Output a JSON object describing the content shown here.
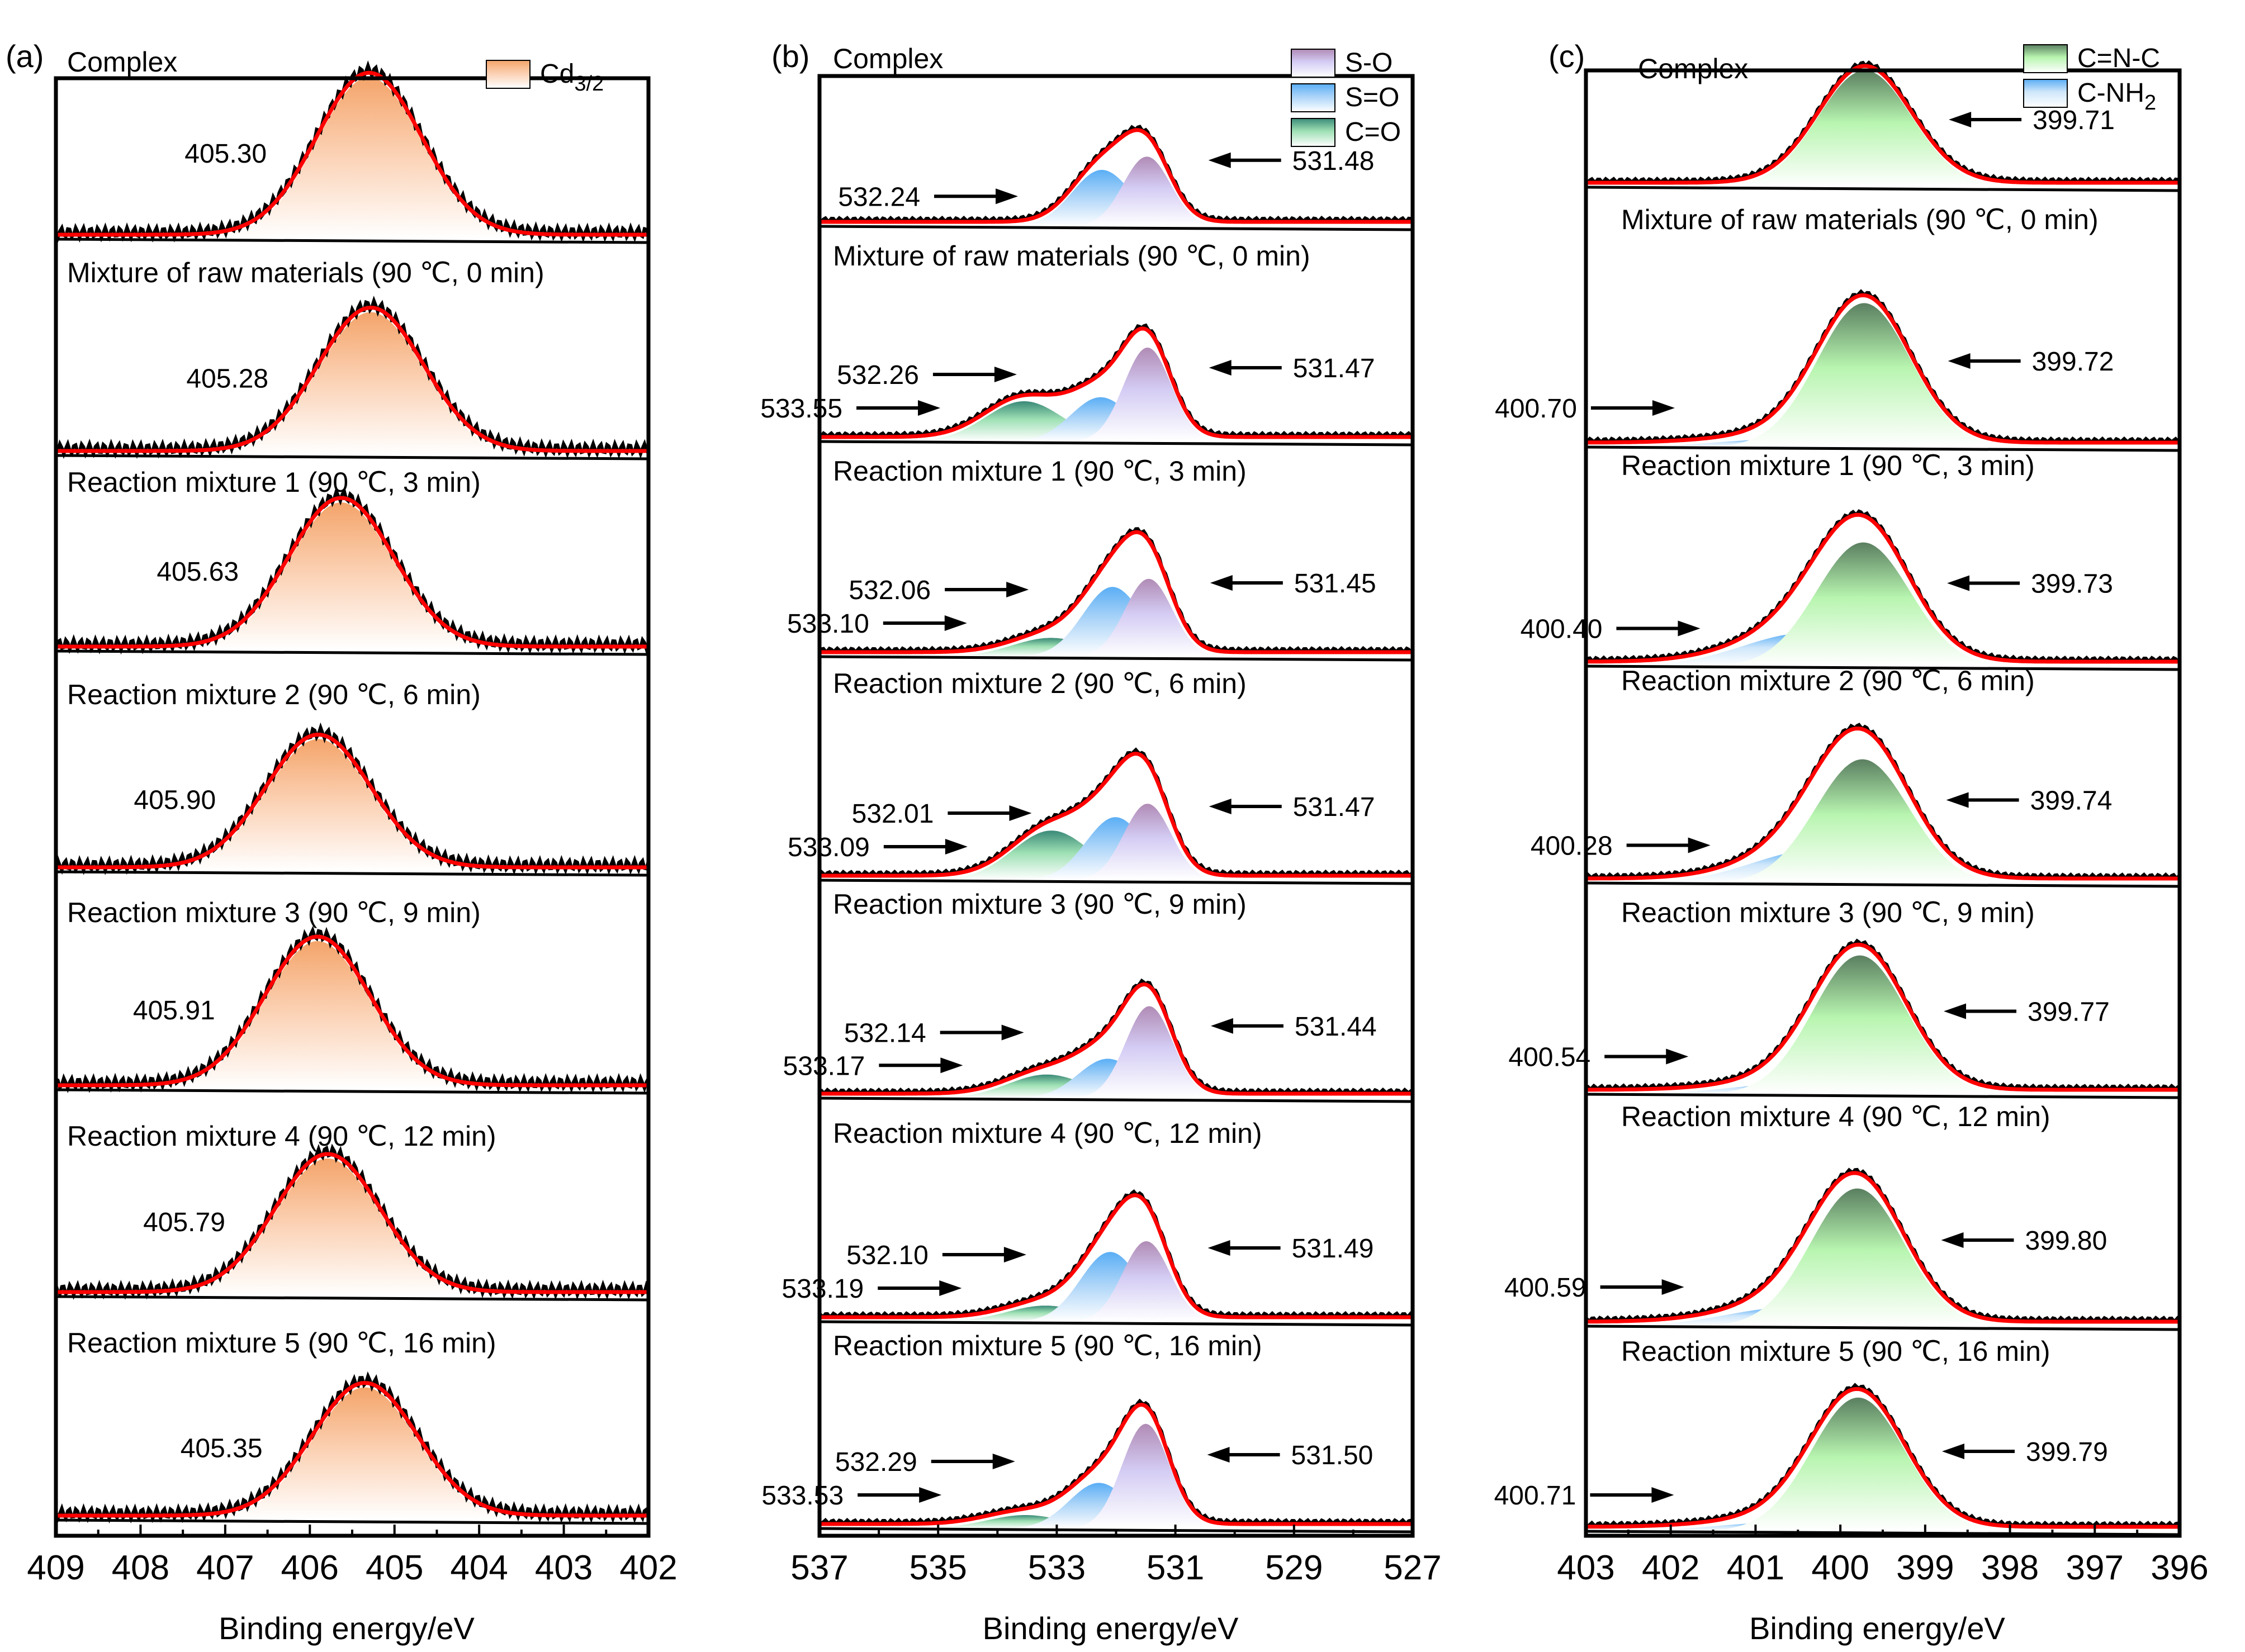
{
  "chart_data": [
    {
      "panel_label": "(a)",
      "type": "area",
      "title": "",
      "xlabel": "Binding energy/eV",
      "ylabel": "",
      "xlim": [
        409,
        402
      ],
      "x_ticks": [
        "409",
        "408",
        "407",
        "406",
        "405",
        "404",
        "403",
        "402"
      ],
      "legend": [
        {
          "name": "Cd3/2",
          "base": "Cd",
          "sub": "3/2",
          "color": "#f4a46a"
        }
      ],
      "legend_position": "top-right",
      "grid": false,
      "spectra": [
        {
          "name": "Complex",
          "peaks": [
            {
              "component": "Cd3/2",
              "center": 405.3,
              "label": "405.30"
            }
          ]
        },
        {
          "name": "Mixture of raw materials (90 ℃, 0 min)",
          "peaks": [
            {
              "component": "Cd3/2",
              "center": 405.28,
              "label": "405.28"
            }
          ]
        },
        {
          "name": "Reaction mixture 1 (90 ℃, 3 min)",
          "peaks": [
            {
              "component": "Cd3/2",
              "center": 405.63,
              "label": "405.63"
            }
          ]
        },
        {
          "name": "Reaction mixture 2 (90 ℃, 6 min)",
          "peaks": [
            {
              "component": "Cd3/2",
              "center": 405.9,
              "label": "405.90"
            }
          ]
        },
        {
          "name": "Reaction mixture 3 (90 ℃, 9 min)",
          "peaks": [
            {
              "component": "Cd3/2",
              "center": 405.91,
              "label": "405.91"
            }
          ]
        },
        {
          "name": "Reaction mixture 4 (90 ℃, 12 min)",
          "peaks": [
            {
              "component": "Cd3/2",
              "center": 405.79,
              "label": "405.79"
            }
          ]
        },
        {
          "name": "Reaction mixture 5 (90 ℃, 16 min)",
          "peaks": [
            {
              "component": "Cd3/2",
              "center": 405.35,
              "label": "405.35"
            }
          ]
        }
      ]
    },
    {
      "panel_label": "(b)",
      "type": "area",
      "title": "",
      "xlabel": "Binding energy/eV",
      "ylabel": "",
      "xlim": [
        537,
        527
      ],
      "x_ticks": [
        "537",
        "535",
        "533",
        "531",
        "529",
        "527"
      ],
      "legend": [
        {
          "name": "S-O",
          "base": "S-O",
          "sub": "",
          "color": "#b08bb5"
        },
        {
          "name": "S=O",
          "base": "S=O",
          "sub": "",
          "color": "#5aaef5"
        },
        {
          "name": "C=O",
          "base": "C=O",
          "sub": "",
          "color": "#3a8a78"
        }
      ],
      "legend_position": "top-right",
      "grid": false,
      "spectra": [
        {
          "name": "Complex",
          "peaks": [
            {
              "component": "S=O",
              "center": 532.24,
              "label": "532.24",
              "rel_height": 0.47
            },
            {
              "component": "S-O",
              "center": 531.48,
              "label": "531.48",
              "rel_height": 0.58
            }
          ]
        },
        {
          "name": "Mixture of raw materials (90 ℃, 0 min)",
          "peaks": [
            {
              "component": "C=O",
              "center": 533.55,
              "label": "533.55",
              "rel_height": 0.3
            },
            {
              "component": "S=O",
              "center": 532.26,
              "label": "532.26",
              "rel_height": 0.33
            },
            {
              "component": "S-O",
              "center": 531.47,
              "label": "531.47",
              "rel_height": 0.7
            }
          ]
        },
        {
          "name": "Reaction mixture 1 (90 ℃, 3 min)",
          "peaks": [
            {
              "component": "C=O",
              "center": 533.1,
              "label": "533.10",
              "rel_height": 0.14
            },
            {
              "component": "S=O",
              "center": 532.06,
              "label": "532.06",
              "rel_height": 0.52
            },
            {
              "component": "S-O",
              "center": 531.45,
              "label": "531.45",
              "rel_height": 0.58
            }
          ]
        },
        {
          "name": "Reaction mixture 2 (90 ℃, 6 min)",
          "peaks": [
            {
              "component": "C=O",
              "center": 533.09,
              "label": "533.09",
              "rel_height": 0.37
            },
            {
              "component": "S=O",
              "center": 532.01,
              "label": "532.01",
              "rel_height": 0.47
            },
            {
              "component": "S-O",
              "center": 531.47,
              "label": "531.47",
              "rel_height": 0.57
            }
          ]
        },
        {
          "name": "Reaction mixture 3 (90 ℃, 9 min)",
          "peaks": [
            {
              "component": "C=O",
              "center": 533.17,
              "label": "533.17",
              "rel_height": 0.18
            },
            {
              "component": "S=O",
              "center": 532.14,
              "label": "532.14",
              "rel_height": 0.3
            },
            {
              "component": "S-O",
              "center": 531.44,
              "label": "531.44",
              "rel_height": 0.7
            }
          ]
        },
        {
          "name": "Reaction mixture 4 (90 ℃, 12 min)",
          "peaks": [
            {
              "component": "C=O",
              "center": 533.19,
              "label": "533.19",
              "rel_height": 0.12
            },
            {
              "component": "S=O",
              "center": 532.1,
              "label": "532.10",
              "rel_height": 0.52
            },
            {
              "component": "S-O",
              "center": 531.49,
              "label": "531.49",
              "rel_height": 0.6
            }
          ]
        },
        {
          "name": "Reaction mixture 5 (90 ℃, 16 min)",
          "peaks": [
            {
              "component": "C=O",
              "center": 533.53,
              "label": "533.53",
              "rel_height": 0.1
            },
            {
              "component": "S=O",
              "center": 532.29,
              "label": "532.29",
              "rel_height": 0.34
            },
            {
              "component": "S-O",
              "center": 531.5,
              "label": "531.50",
              "rel_height": 0.78
            }
          ]
        }
      ]
    },
    {
      "panel_label": "(c)",
      "type": "area",
      "title": "",
      "xlabel": "Binding energy/eV",
      "ylabel": "",
      "xlim": [
        403,
        396
      ],
      "x_ticks": [
        "403",
        "402",
        "401",
        "400",
        "399",
        "398",
        "397",
        "396"
      ],
      "legend": [
        {
          "name": "C=N-C",
          "base": "C=N-C",
          "sub": "",
          "color": "#5a8a60"
        },
        {
          "name": "C-NH2",
          "base": "C-NH",
          "sub": "2",
          "color": "#5aaef5"
        }
      ],
      "legend_position": "top-right",
      "grid": false,
      "spectra": [
        {
          "name": "Complex",
          "peaks": [
            {
              "component": "C=N-C",
              "center": 399.71,
              "label": "399.71",
              "rel_height": 0.95
            }
          ]
        },
        {
          "name": "Mixture of raw materials (90 ℃, 0 min)",
          "peaks": [
            {
              "component": "C-NH2",
              "center": 400.7,
              "label": "400.70",
              "rel_height": 0.05
            },
            {
              "component": "C=N-C",
              "center": 399.72,
              "label": "399.72",
              "rel_height": 0.92
            }
          ]
        },
        {
          "name": "Reaction mixture 1 (90 ℃, 3 min)",
          "peaks": [
            {
              "component": "C-NH2",
              "center": 400.4,
              "label": "400.40",
              "rel_height": 0.22
            },
            {
              "component": "C=N-C",
              "center": 399.73,
              "label": "399.73",
              "rel_height": 0.82
            }
          ]
        },
        {
          "name": "Reaction mixture 2 (90 ℃, 6 min)",
          "peaks": [
            {
              "component": "C-NH2",
              "center": 400.28,
              "label": "400.28",
              "rel_height": 0.22
            },
            {
              "component": "C=N-C",
              "center": 399.74,
              "label": "399.74",
              "rel_height": 0.82
            }
          ]
        },
        {
          "name": "Reaction mixture 3 (90 ℃, 9 min)",
          "peaks": [
            {
              "component": "C-NH2",
              "center": 400.54,
              "label": "400.54",
              "rel_height": 0.07
            },
            {
              "component": "C=N-C",
              "center": 399.77,
              "label": "399.77",
              "rel_height": 0.92
            }
          ]
        },
        {
          "name": "Reaction mixture 4 (90 ℃, 12 min)",
          "peaks": [
            {
              "component": "C-NH2",
              "center": 400.59,
              "label": "400.59",
              "rel_height": 0.12
            },
            {
              "component": "C=N-C",
              "center": 399.8,
              "label": "399.80",
              "rel_height": 0.88
            }
          ]
        },
        {
          "name": "Reaction mixture 5 (90 ℃, 16 min)",
          "peaks": [
            {
              "component": "C-NH2",
              "center": 400.71,
              "label": "400.71",
              "rel_height": 0.06
            },
            {
              "component": "C=N-C",
              "center": 399.79,
              "label": "399.79",
              "rel_height": 0.92
            }
          ]
        }
      ]
    }
  ],
  "colors": {
    "fit_envelope": "#ff0000",
    "raw_data": "#000000",
    "frame": "#000000"
  }
}
